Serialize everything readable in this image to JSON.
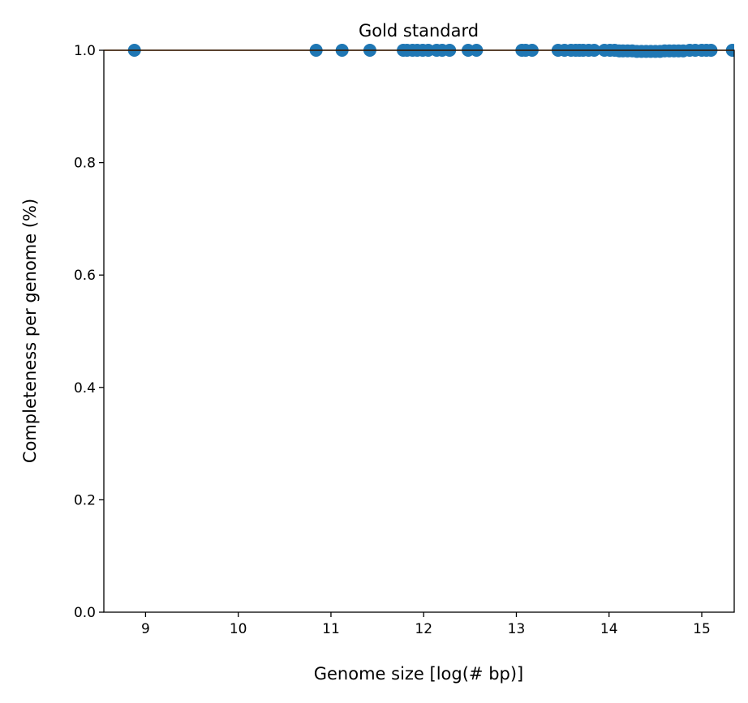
{
  "chart_data": {
    "type": "scatter",
    "title": "Gold standard",
    "xlabel": "Genome size [log(# bp)]",
    "ylabel": "Completeness per genome (%)",
    "xlim": [
      8.55,
      15.35
    ],
    "ylim": [
      0.0,
      1.0
    ],
    "xticks": [
      9,
      10,
      11,
      12,
      13,
      14,
      15
    ],
    "yticks": [
      0.0,
      0.2,
      0.4,
      0.6,
      0.8,
      1.0
    ],
    "grid": false,
    "marker_color": "#1f77b4",
    "trend_line_color": "#ff7f0e",
    "trend_line": {
      "x": [
        8.55,
        15.35
      ],
      "y": [
        1.0,
        1.0
      ]
    },
    "x": [
      8.88,
      10.84,
      11.12,
      11.42,
      11.78,
      11.82,
      11.88,
      11.93,
      11.99,
      12.05,
      12.14,
      12.2,
      12.28,
      12.48,
      12.57,
      13.06,
      13.1,
      13.17,
      13.45,
      13.52,
      13.59,
      13.64,
      13.68,
      13.72,
      13.78,
      13.84,
      13.95,
      14.01,
      14.06,
      14.11,
      14.15,
      14.2,
      14.25,
      14.3,
      14.35,
      14.4,
      14.45,
      14.5,
      14.55,
      14.6,
      14.65,
      14.7,
      14.75,
      14.8,
      14.87,
      14.93,
      15.0,
      15.05,
      15.1,
      15.33
    ],
    "y": [
      1.0,
      1.0,
      1.0,
      1.0,
      1.0,
      1.0,
      1.0,
      1.0,
      1.0,
      1.0,
      1.0,
      1.0,
      1.0,
      1.0,
      1.0,
      1.0,
      1.0,
      1.0,
      1.0,
      1.0,
      1.0,
      1.0,
      1.0,
      1.0,
      1.0,
      1.0,
      1.0,
      1.0,
      1.0,
      0.999,
      0.999,
      0.999,
      0.999,
      0.998,
      0.998,
      0.998,
      0.998,
      0.998,
      0.998,
      0.999,
      0.999,
      0.999,
      0.999,
      0.999,
      1.0,
      1.0,
      1.0,
      1.0,
      1.0,
      1.0
    ]
  }
}
